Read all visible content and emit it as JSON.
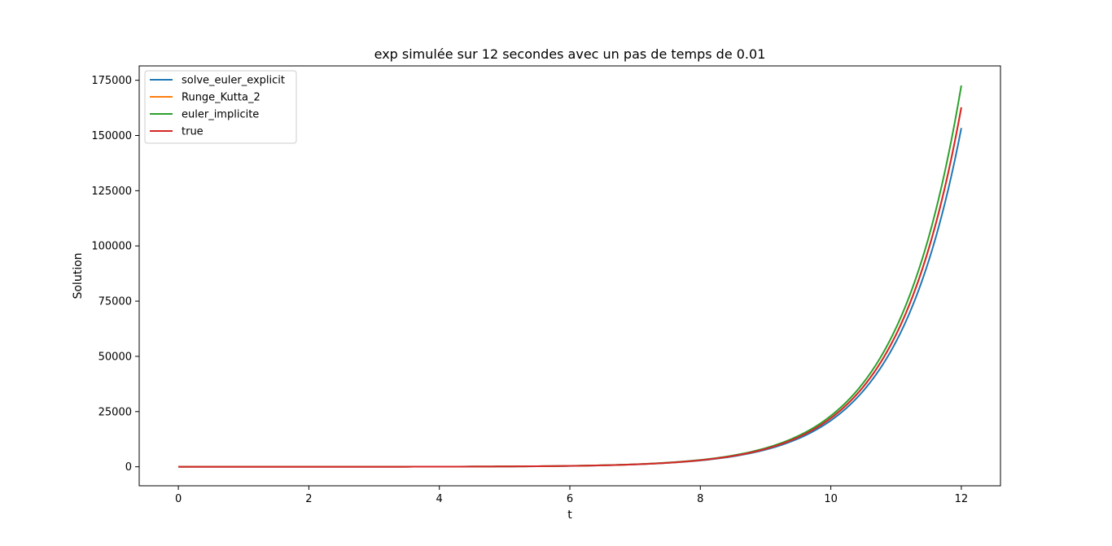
{
  "chart_data": {
    "type": "line",
    "title": "exp simulée sur 12 secondes avec un pas de temps de 0.01",
    "xlabel": "t",
    "ylabel": "Solution",
    "xlim": [
      -0.6,
      12.6
    ],
    "ylim": [
      -8600,
      181500
    ],
    "xticks": [
      0,
      2,
      4,
      6,
      8,
      10,
      12
    ],
    "xtick_labels": [
      "0",
      "2",
      "4",
      "6",
      "8",
      "10",
      "12"
    ],
    "yticks": [
      0,
      25000,
      50000,
      75000,
      100000,
      125000,
      150000,
      175000
    ],
    "ytick_labels": [
      "0",
      "25000",
      "50000",
      "75000",
      "100000",
      "125000",
      "150000",
      "175000"
    ],
    "grid": false,
    "legend_position": "upper-left",
    "x": [
      0,
      1,
      2,
      3,
      4,
      5,
      6,
      7,
      8,
      8.5,
      9,
      9.5,
      10,
      10.5,
      11,
      11.5,
      12
    ],
    "series": [
      {
        "name": "solve_euler_explicit",
        "color": "#1f77b4",
        "values": [
          1,
          2.7,
          7.3,
          19.8,
          53.5,
          144.7,
          391.5,
          1059,
          2864,
          4711,
          7748,
          12743,
          20959,
          34472,
          56697,
          93250,
          153370
        ]
      },
      {
        "name": "Runge_Kutta_2",
        "color": "#ff7f0e",
        "values": [
          1,
          2.7,
          7.4,
          20.1,
          54.6,
          148.4,
          403.4,
          1097,
          2981,
          4915,
          8103,
          13360,
          22026,
          36316,
          59874,
          98716,
          162755
        ]
      },
      {
        "name": "euler_implicite",
        "color": "#2ca02c",
        "values": [
          1,
          2.7,
          7.4,
          20.4,
          55.7,
          152.2,
          415.6,
          1135,
          3100,
          5121,
          8457,
          13968,
          23069,
          38100,
          62926,
          103929,
          172643
        ]
      },
      {
        "name": "true",
        "color": "#d62728",
        "values": [
          1,
          2.7,
          7.4,
          20.1,
          54.6,
          148.4,
          403.4,
          1097,
          2981,
          4915,
          8103,
          13360,
          22026,
          36316,
          59874,
          98716,
          162755
        ]
      }
    ]
  }
}
